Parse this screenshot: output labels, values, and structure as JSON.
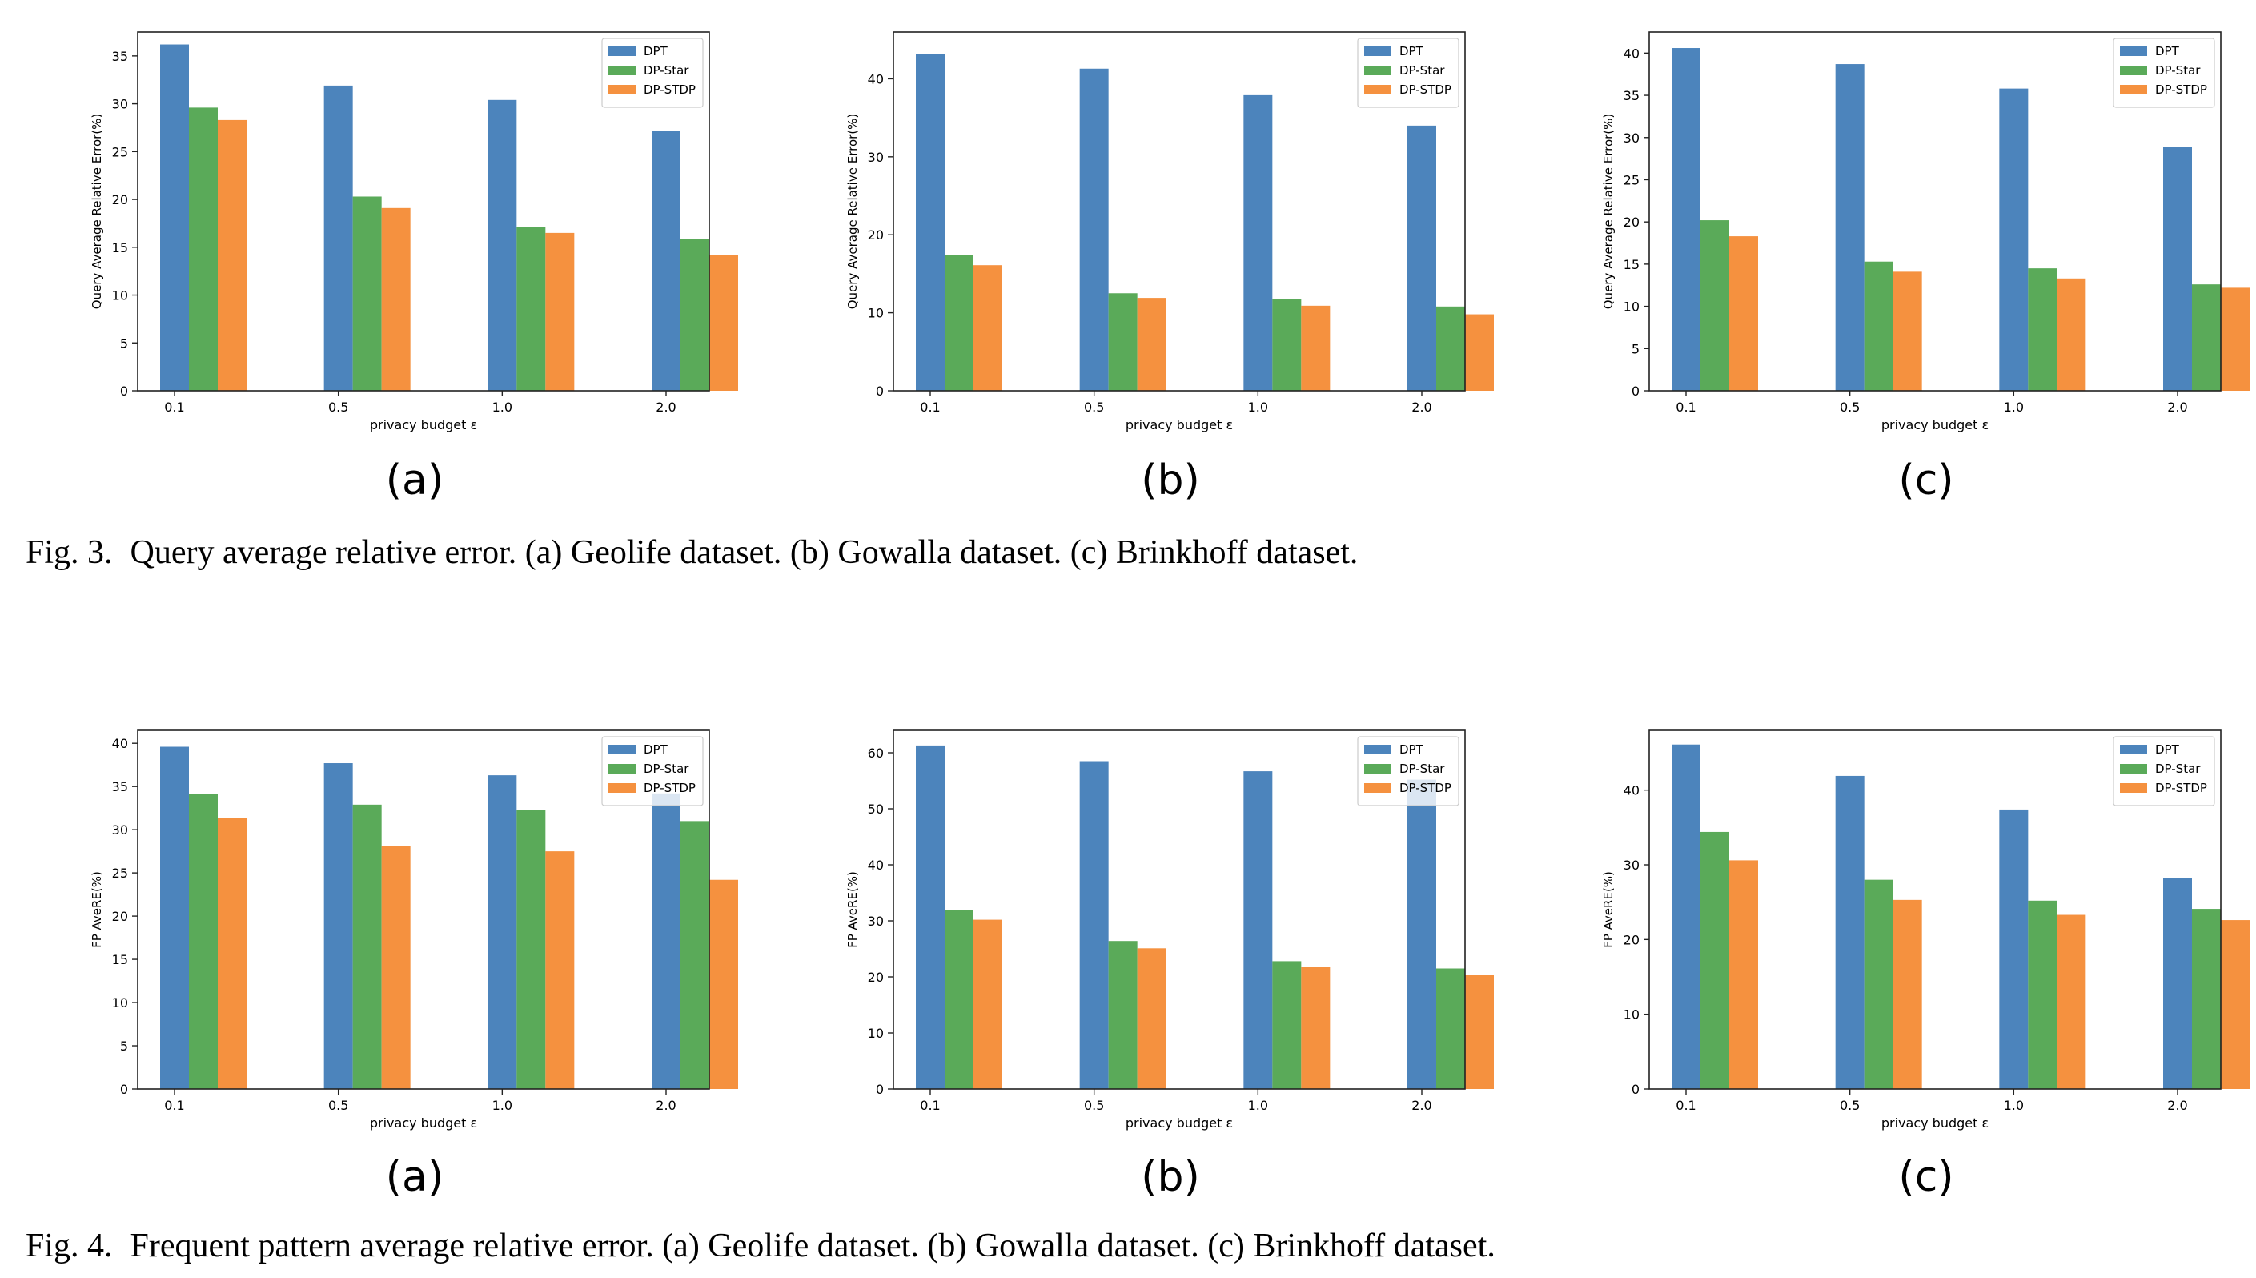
{
  "colors": {
    "DPT": "#4c84bc",
    "DP-Star": "#5aaa59",
    "DP-STDP": "#f5913f"
  },
  "figures": [
    {
      "caption_label": "Fig. 3.",
      "caption_text": "Query average relative error. (a) Geolife dataset. (b) Gowalla dataset. (c) Brinkhoff dataset.",
      "panel_labels": [
        "(a)",
        "(b)",
        "(c)"
      ]
    },
    {
      "caption_label": "Fig. 4.",
      "caption_text": "Frequent pattern average relative error. (a) Geolife dataset. (b) Gowalla dataset. (c) Brinkhoff dataset.",
      "panel_labels": [
        "(a)",
        "(b)",
        "(c)"
      ]
    }
  ],
  "chart_data": [
    {
      "type": "bar",
      "categories": [
        "0.1",
        "0.5",
        "1.0",
        "2.0"
      ],
      "xlabel": "privacy budget ε",
      "ylabel": "Query Average Relative Error(%)",
      "ylim": [
        0,
        37.5
      ],
      "yticks": [
        0,
        5,
        10,
        15,
        20,
        25,
        30,
        35
      ],
      "legend": "top-right",
      "series": [
        {
          "name": "DPT",
          "values": [
            36.2,
            31.9,
            30.4,
            27.2
          ]
        },
        {
          "name": "DP-Star",
          "values": [
            29.6,
            20.3,
            17.1,
            15.9
          ]
        },
        {
          "name": "DP-STDP",
          "values": [
            28.3,
            19.1,
            16.5,
            14.2
          ]
        }
      ]
    },
    {
      "type": "bar",
      "categories": [
        "0.1",
        "0.5",
        "1.0",
        "2.0"
      ],
      "xlabel": "privacy budget ε",
      "ylabel": "Query Average Relative Error(%)",
      "ylim": [
        0,
        46
      ],
      "yticks": [
        0,
        10,
        20,
        30,
        40
      ],
      "legend": "top-right",
      "series": [
        {
          "name": "DPT",
          "values": [
            43.2,
            41.3,
            37.9,
            34.0
          ]
        },
        {
          "name": "DP-Star",
          "values": [
            17.4,
            12.5,
            11.8,
            10.8
          ]
        },
        {
          "name": "DP-STDP",
          "values": [
            16.1,
            11.9,
            10.9,
            9.8
          ]
        }
      ]
    },
    {
      "type": "bar",
      "categories": [
        "0.1",
        "0.5",
        "1.0",
        "2.0"
      ],
      "xlabel": "privacy budget ε",
      "ylabel": "Query Average Relative Error(%)",
      "ylim": [
        0,
        42.5
      ],
      "yticks": [
        0,
        5,
        10,
        15,
        20,
        25,
        30,
        35,
        40
      ],
      "legend": "top-right",
      "series": [
        {
          "name": "DPT",
          "values": [
            40.6,
            38.7,
            35.8,
            28.9
          ]
        },
        {
          "name": "DP-Star",
          "values": [
            20.2,
            15.3,
            14.5,
            12.6
          ]
        },
        {
          "name": "DP-STDP",
          "values": [
            18.3,
            14.1,
            13.3,
            12.2
          ]
        }
      ]
    },
    {
      "type": "bar",
      "categories": [
        "0.1",
        "0.5",
        "1.0",
        "2.0"
      ],
      "xlabel": "privacy budget ε",
      "ylabel": "FP AveRE(%)",
      "ylim": [
        0,
        41.5
      ],
      "yticks": [
        0,
        5,
        10,
        15,
        20,
        25,
        30,
        35,
        40
      ],
      "legend": "top-right",
      "series": [
        {
          "name": "DPT",
          "values": [
            39.6,
            37.7,
            36.3,
            34.2
          ]
        },
        {
          "name": "DP-Star",
          "values": [
            34.1,
            32.9,
            32.3,
            31.0
          ]
        },
        {
          "name": "DP-STDP",
          "values": [
            31.4,
            28.1,
            27.5,
            24.2
          ]
        }
      ]
    },
    {
      "type": "bar",
      "categories": [
        "0.1",
        "0.5",
        "1.0",
        "2.0"
      ],
      "xlabel": "privacy budget ε",
      "ylabel": "FP AveRE(%)",
      "ylim": [
        0,
        64
      ],
      "yticks": [
        0,
        10,
        20,
        30,
        40,
        50,
        60
      ],
      "legend": "top-right",
      "series": [
        {
          "name": "DPT",
          "values": [
            61.3,
            58.5,
            56.7,
            55.2
          ]
        },
        {
          "name": "DP-Star",
          "values": [
            31.9,
            26.4,
            22.8,
            21.5
          ]
        },
        {
          "name": "DP-STDP",
          "values": [
            30.2,
            25.1,
            21.8,
            20.4
          ]
        }
      ]
    },
    {
      "type": "bar",
      "categories": [
        "0.1",
        "0.5",
        "1.0",
        "2.0"
      ],
      "xlabel": "privacy budget ε",
      "ylabel": "FP AveRE(%)",
      "ylim": [
        0,
        48
      ],
      "yticks": [
        0,
        10,
        20,
        30,
        40
      ],
      "legend": "top-right",
      "series": [
        {
          "name": "DPT",
          "values": [
            46.1,
            41.9,
            37.4,
            28.2
          ]
        },
        {
          "name": "DP-Star",
          "values": [
            34.4,
            28.0,
            25.2,
            24.1
          ]
        },
        {
          "name": "DP-STDP",
          "values": [
            30.6,
            25.3,
            23.3,
            22.6
          ]
        }
      ]
    }
  ]
}
